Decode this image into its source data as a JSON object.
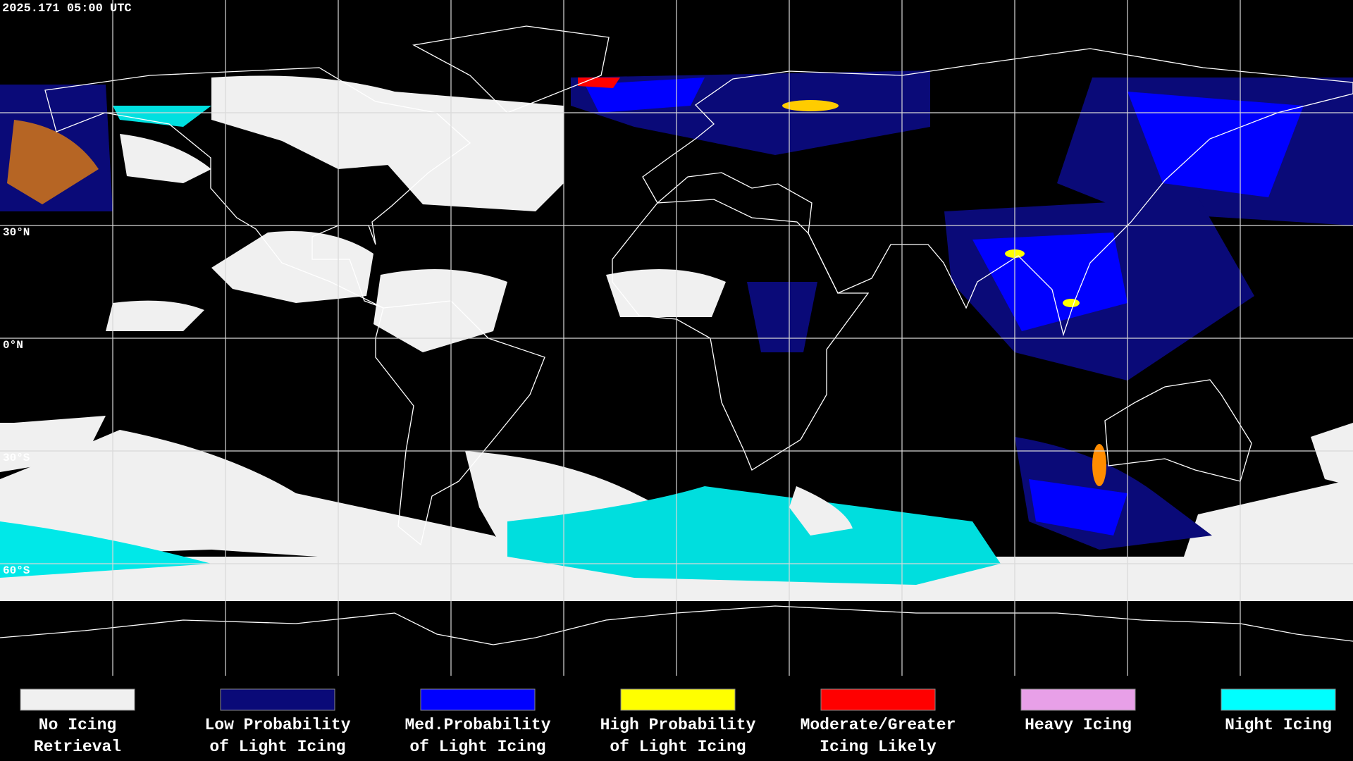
{
  "header": {
    "timestamp": "2025.171 05:00 UTC"
  },
  "map": {
    "latitude_labels": [
      "30°N",
      "0°N",
      "30°S",
      "60°S"
    ]
  },
  "legend": {
    "items": [
      {
        "lines": [
          "No Icing",
          "Retrieval"
        ],
        "color": "#f0f0f0"
      },
      {
        "lines": [
          "Low Probability",
          "of Light Icing"
        ],
        "color": "#0a0a78"
      },
      {
        "lines": [
          "Med.Probability",
          "of Light Icing"
        ],
        "color": "#0000ff"
      },
      {
        "lines": [
          "High Probability",
          "of Light Icing"
        ],
        "color": "#ffff00"
      },
      {
        "lines": [
          "Moderate/Greater",
          "Icing Likely"
        ],
        "color": "#ff0000"
      },
      {
        "lines": [
          "Heavy Icing"
        ],
        "color": "#e8a0e8"
      },
      {
        "lines": [
          "Night Icing"
        ],
        "color": "#00ffff"
      }
    ]
  }
}
